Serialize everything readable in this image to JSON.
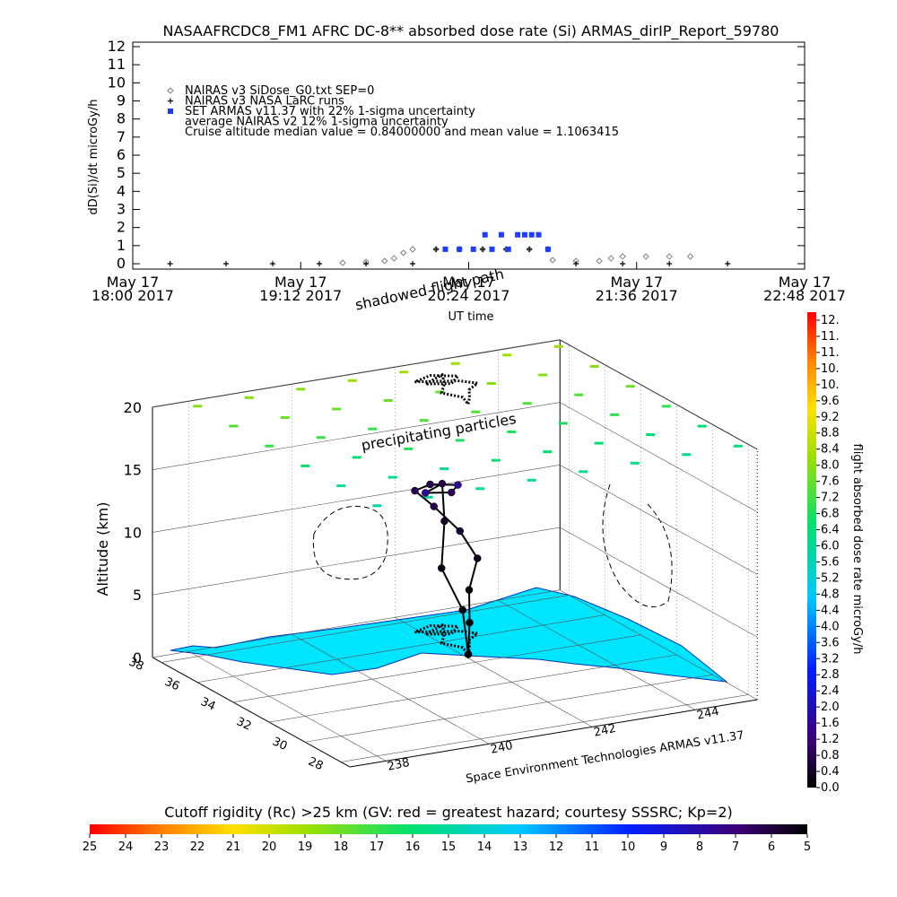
{
  "chart_data": [
    {
      "type": "line",
      "title": "NASAAFRCDC8_FM1 AFRC DC-8** absorbed dose rate (Si) ARMAS_dirIP_Report_59780",
      "y_label": "dD(Si)/dt microGy/h",
      "x_label": "UT time",
      "ylim": [
        0,
        12
      ],
      "yticks": [
        0,
        1,
        2,
        3,
        4,
        5,
        6,
        7,
        8,
        9,
        10,
        11,
        12
      ],
      "xlim": [
        "2017-05-17 18:00",
        "2017-05-17 22:48"
      ],
      "xticks": [
        {
          "value": "2017-05-17 18:00",
          "label": [
            "May 17",
            "18:00 2017"
          ]
        },
        {
          "value": "2017-05-17 19:12",
          "label": [
            "May 17",
            "19:12 2017"
          ]
        },
        {
          "value": "2017-05-17 20:24",
          "label": [
            "May 17",
            "20:24 2017"
          ]
        },
        {
          "value": "2017-05-17 21:36",
          "label": [
            "May 17",
            "21:36 2017"
          ]
        },
        {
          "value": "2017-05-17 22:48",
          "label": [
            "May 17",
            "22:48 2017"
          ]
        }
      ],
      "legend_notes": [
        "average NAIRAS v2 12% 1-sigma uncertainty",
        "Cruise altitude median value = 0.84000000 and mean value = 1.1063415"
      ],
      "series": [
        {
          "name": "NAIRAS v3 SiDose_G0.txt SEP=0",
          "color": "#808080",
          "marker": "diamond",
          "x": [
            "2017-05-17 19:30",
            "2017-05-17 19:40",
            "2017-05-17 19:48",
            "2017-05-17 19:52",
            "2017-05-17 19:56",
            "2017-05-17 20:00",
            "2017-05-17 20:10",
            "2017-05-17 20:20",
            "2017-05-17 20:30",
            "2017-05-17 20:40",
            "2017-05-17 20:50",
            "2017-05-17 20:58",
            "2017-05-17 21:00",
            "2017-05-17 21:10",
            "2017-05-17 21:20",
            "2017-05-17 21:25",
            "2017-05-17 21:30",
            "2017-05-17 21:40",
            "2017-05-17 21:50",
            "2017-05-17 21:59"
          ],
          "values": [
            0.05,
            0.1,
            0.15,
            0.3,
            0.6,
            0.8,
            0.8,
            0.8,
            0.8,
            0.8,
            0.8,
            0.8,
            0.2,
            0.15,
            0.15,
            0.3,
            0.4,
            0.4,
            0.4,
            0.4
          ]
        },
        {
          "name": "NAIRAS v3 NASA LaRC runs",
          "color": "#000000",
          "marker": "plus",
          "x": [
            "2017-05-17 18:16",
            "2017-05-17 18:40",
            "2017-05-17 19:00",
            "2017-05-17 19:20",
            "2017-05-17 19:40",
            "2017-05-17 20:00",
            "2017-05-17 20:10",
            "2017-05-17 20:20",
            "2017-05-17 20:30",
            "2017-05-17 20:40",
            "2017-05-17 20:50",
            "2017-05-17 21:10",
            "2017-05-17 21:30",
            "2017-05-17 21:50",
            "2017-05-17 22:15"
          ],
          "values": [
            0,
            0,
            0,
            0,
            0,
            0,
            0.8,
            0.8,
            0.8,
            0.8,
            0.8,
            0,
            0,
            0,
            0
          ]
        },
        {
          "name": "SET ARMAS v11.37 with 22% 1-sigma uncertainty",
          "color": "#1e3cff",
          "marker": "square",
          "x": [
            "2017-05-17 20:14",
            "2017-05-17 20:20",
            "2017-05-17 20:26",
            "2017-05-17 20:31",
            "2017-05-17 20:34",
            "2017-05-17 20:38",
            "2017-05-17 20:41",
            "2017-05-17 20:45",
            "2017-05-17 20:48",
            "2017-05-17 20:51",
            "2017-05-17 20:54",
            "2017-05-17 20:58"
          ],
          "values": [
            0.8,
            0.8,
            0.8,
            1.6,
            0.8,
            1.6,
            0.8,
            1.6,
            1.6,
            1.6,
            1.6,
            0.8
          ]
        }
      ]
    },
    {
      "type": "scatter3d",
      "annotations": [
        "shadowed flight path",
        "precipitating particles"
      ],
      "z_label": "Altitude (km)",
      "zlim": [
        0,
        20
      ],
      "zticks": [
        0,
        5,
        10,
        15,
        20
      ],
      "ylim": [
        27.5,
        38.5
      ],
      "yticks": [
        38,
        36,
        34,
        32,
        30,
        28
      ],
      "xlim": [
        237.3,
        245.2
      ],
      "xticks": [
        238,
        240,
        242,
        244
      ],
      "credit": "Space Environment Technologies ARMAS v11.37",
      "flight_path": {
        "lon": [
          242.1,
          242.3,
          242.5,
          242.8,
          242.6,
          242.2,
          241.9,
          242.3,
          242.7,
          242.4,
          242.0,
          242.5,
          242.3,
          242.0,
          242.2,
          242.1
        ],
        "lat": [
          34.7,
          35.2,
          35.8,
          36.2,
          36.6,
          36.9,
          37.1,
          37.4,
          37.0,
          36.5,
          36.8,
          37.3,
          36.6,
          35.9,
          35.3,
          34.7
        ],
        "alt": [
          0,
          2,
          4,
          6,
          8,
          10,
          11.3,
          11.3,
          11.3,
          11.3,
          11.3,
          11.3,
          9,
          6,
          3,
          0
        ],
        "dose": [
          0.0,
          0.0,
          0.1,
          0.3,
          0.5,
          0.8,
          0.8,
          0.8,
          1.6,
          0.8,
          1.6,
          0.8,
          0.4,
          0.2,
          0.1,
          0.0
        ]
      },
      "particles": {
        "lons": [
          238,
          239,
          240,
          241,
          242,
          243,
          244,
          245
        ],
        "lats": [
          28,
          30,
          32,
          34,
          36,
          38
        ],
        "values": [
          [
            15,
            15,
            15,
            15,
            14.5,
            14.5,
            14.5,
            14.5
          ],
          [
            14.5,
            14.5,
            14.5,
            14,
            14,
            14,
            14,
            14
          ],
          [
            14,
            14,
            13.5,
            13.5,
            13.5,
            13.5,
            13,
            13
          ],
          [
            13,
            13,
            13,
            12.5,
            12.5,
            12.5,
            12.5,
            12
          ],
          [
            12.5,
            12,
            12,
            12,
            12,
            11.5,
            11.5,
            11.5
          ],
          [
            11.5,
            11.5,
            11.5,
            11,
            11,
            11,
            11,
            11
          ]
        ]
      },
      "dose_colorbar": {
        "label": "flight absorbed dose rate microGy/h",
        "ylim": [
          0,
          11.8
        ],
        "yticks": [
          {
            "value": 0,
            "label": "0.0"
          },
          0.4,
          0.8,
          1.2,
          1.6,
          {
            "value": 2,
            "label": "2.0"
          },
          2.4,
          2.8,
          3.2,
          3.6,
          {
            "value": 4,
            "label": "4.0"
          },
          4.4,
          4.8,
          5.2,
          5.6,
          {
            "value": 6,
            "label": "6.0"
          },
          6.4,
          6.8,
          7.2,
          7.6,
          {
            "value": 8,
            "label": "8.0"
          },
          8.4,
          8.8,
          9.2,
          9.6,
          {
            "value": 10,
            "label": "10."
          },
          {
            "value": 10.4,
            "label": "10."
          },
          {
            "value": 10.8,
            "label": "11."
          },
          {
            "value": 11.2,
            "label": "11."
          },
          {
            "value": 11.6,
            "label": "12."
          }
        ]
      },
      "rigidity_colorbar": {
        "label": "Cutoff rigidity (Rc) >25 km (GV: red = greatest hazard; courtesy SSSRC; Kp=2)",
        "xlim": [
          25,
          5
        ],
        "xticks": [
          25,
          24,
          23,
          22,
          21,
          20,
          19,
          18,
          17,
          16,
          15,
          14,
          13,
          12,
          11,
          10,
          9,
          8,
          7,
          6,
          5
        ]
      }
    }
  ]
}
